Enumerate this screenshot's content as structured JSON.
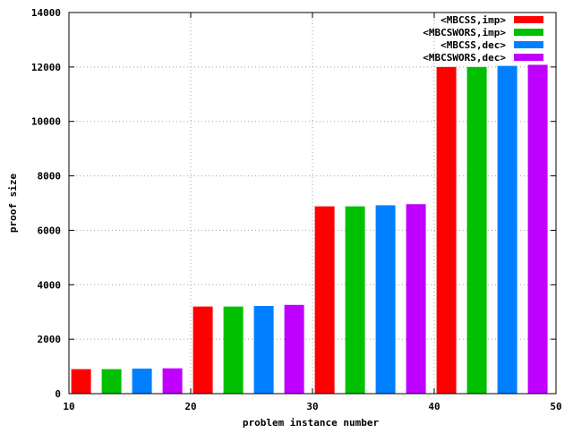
{
  "chart_data": {
    "type": "bar",
    "title": "",
    "xlabel": "problem instance number",
    "ylabel": "proof size",
    "xlim": [
      10,
      50
    ],
    "ylim": [
      0,
      14000
    ],
    "xticks": [
      10,
      20,
      30,
      40,
      50
    ],
    "yticks": [
      0,
      2000,
      4000,
      6000,
      8000,
      10000,
      12000,
      14000
    ],
    "grid": true,
    "legend_position": "top-right",
    "groups": [
      {
        "x": [
          11,
          13.5,
          16,
          18.5
        ],
        "values": [
          900,
          900,
          920,
          930
        ]
      },
      {
        "x": [
          21,
          23.5,
          26,
          28.5
        ],
        "values": [
          3200,
          3200,
          3220,
          3260
        ]
      },
      {
        "x": [
          31,
          33.5,
          36,
          38.5
        ],
        "values": [
          6880,
          6880,
          6920,
          6960
        ]
      },
      {
        "x": [
          41,
          43.5,
          46,
          48.5
        ],
        "values": [
          12000,
          12000,
          12040,
          12080
        ]
      }
    ],
    "series": [
      {
        "name": "<MBCSS,imp>",
        "color": "#ff0000",
        "x": [
          11,
          21,
          31,
          41
        ],
        "values": [
          900,
          3200,
          6880,
          12000
        ]
      },
      {
        "name": "<MBCSWORS,imp>",
        "color": "#00c000",
        "x": [
          13.5,
          23.5,
          33.5,
          43.5
        ],
        "values": [
          900,
          3200,
          6880,
          12000
        ]
      },
      {
        "name": "<MBCSS,dec>",
        "color": "#0080ff",
        "x": [
          16,
          26,
          36,
          46
        ],
        "values": [
          920,
          3220,
          6920,
          12040
        ]
      },
      {
        "name": "<MBCSWORS,dec>",
        "color": "#c000ff",
        "x": [
          18.5,
          28.5,
          38.5,
          48.5
        ],
        "values": [
          930,
          3260,
          6960,
          12080
        ]
      }
    ]
  }
}
